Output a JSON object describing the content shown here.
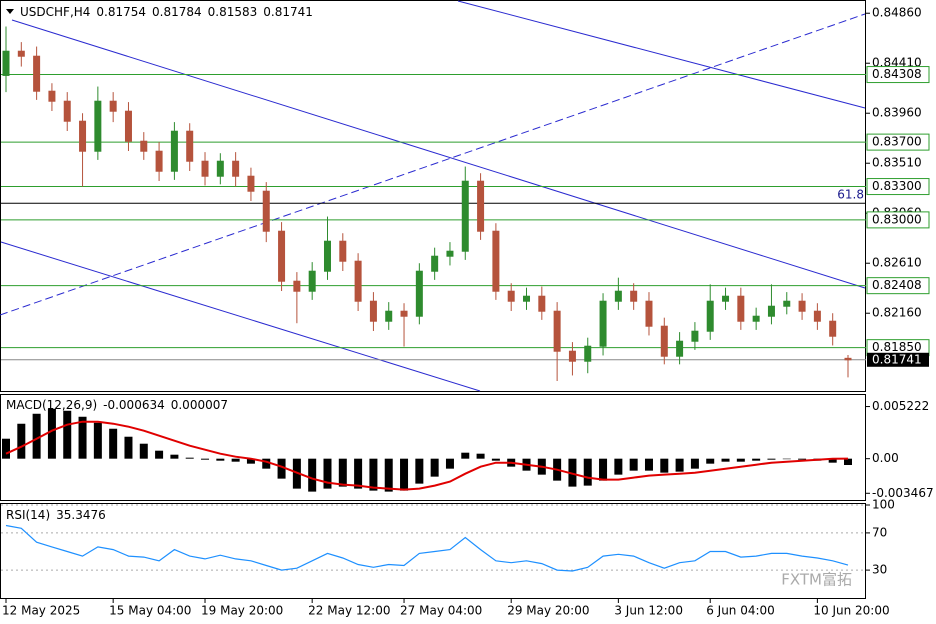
{
  "chart_data": [
    {
      "type": "candlestick",
      "title": "USDCHF,H4",
      "header_values": [
        0.81754,
        0.81784,
        0.81583,
        0.81741
      ],
      "categories": [
        "12 May 2025",
        null,
        null,
        null,
        null,
        null,
        null,
        "15 May 04:00",
        null,
        null,
        null,
        null,
        null,
        "19 May 20:00",
        null,
        null,
        null,
        null,
        null,
        null,
        "22 May 12:00",
        null,
        null,
        null,
        null,
        null,
        "27 May 04:00",
        null,
        null,
        null,
        null,
        null,
        null,
        "29 May 20:00",
        null,
        null,
        null,
        null,
        null,
        null,
        "3 Jun 12:00",
        null,
        null,
        null,
        null,
        null,
        "6 Jun 04:00",
        null,
        null,
        null,
        null,
        null,
        null,
        "10 Jun 20:00",
        null,
        null
      ],
      "open": [
        0.843,
        0.84518,
        0.84473,
        0.84158,
        0.84068,
        0.83888,
        0.83618,
        0.84068,
        0.83978,
        0.83708,
        0.83618,
        0.83438,
        0.83798,
        0.83528,
        0.83393,
        0.83528,
        0.83393,
        0.83258,
        0.82898,
        0.82448,
        0.82358,
        0.82538,
        0.82808,
        0.82628,
        0.82268,
        0.82088,
        0.82178,
        0.82133,
        0.82538,
        0.82673,
        0.82718,
        0.83348,
        0.82898,
        0.82358,
        0.82268,
        0.82313,
        0.82178,
        0.81818,
        0.81728,
        0.81863,
        0.82268,
        0.82358,
        0.82268,
        0.82043,
        0.81773,
        0.81908,
        0.81998,
        0.82268,
        0.82313,
        0.82088,
        0.82133,
        0.82223,
        0.82268,
        0.82178,
        0.82088,
        0.81754
      ],
      "high": [
        0.8474,
        0.846,
        0.8456,
        0.8423,
        0.8415,
        0.8396,
        0.842,
        0.8415,
        0.8406,
        0.8379,
        0.837,
        0.8388,
        0.8387,
        0.8361,
        0.836,
        0.8361,
        0.8347,
        0.8334,
        0.8298,
        0.8253,
        0.8262,
        0.8303,
        0.8288,
        0.827,
        0.8235,
        0.8226,
        0.8225,
        0.8261,
        0.8275,
        0.828,
        0.8348,
        0.8342,
        0.8297,
        0.8243,
        0.8239,
        0.824,
        0.8226,
        0.819,
        0.8194,
        0.8234,
        0.8248,
        0.8243,
        0.8235,
        0.8212,
        0.8199,
        0.8208,
        0.8242,
        0.8239,
        0.8239,
        0.8221,
        0.8242,
        0.8235,
        0.8234,
        0.8225,
        0.8216,
        0.81784
      ],
      "low": [
        0.8415,
        0.8438,
        0.8408,
        0.8398,
        0.838,
        0.833,
        0.8354,
        0.8388,
        0.8362,
        0.8354,
        0.8335,
        0.8336,
        0.8344,
        0.8331,
        0.8332,
        0.833,
        0.8317,
        0.828,
        0.8236,
        0.8207,
        0.8228,
        0.8246,
        0.8254,
        0.8218,
        0.82,
        0.8201,
        0.8186,
        0.8206,
        0.8246,
        0.8259,
        0.8264,
        0.8282,
        0.8228,
        0.8218,
        0.8219,
        0.821,
        0.8155,
        0.816,
        0.8162,
        0.8178,
        0.8219,
        0.8219,
        0.8196,
        0.817,
        0.817,
        0.8183,
        0.8192,
        0.8219,
        0.8201,
        0.8201,
        0.8206,
        0.8215,
        0.821,
        0.8201,
        0.8187,
        0.81583
      ],
      "close": [
        0.84518,
        0.84473,
        0.84158,
        0.84068,
        0.83888,
        0.83618,
        0.84068,
        0.83978,
        0.83708,
        0.83618,
        0.83438,
        0.83798,
        0.83528,
        0.83393,
        0.83528,
        0.83393,
        0.83258,
        0.82898,
        0.82448,
        0.82358,
        0.82538,
        0.82808,
        0.82628,
        0.82268,
        0.82088,
        0.82178,
        0.82133,
        0.82538,
        0.82673,
        0.82718,
        0.83348,
        0.82898,
        0.82358,
        0.82268,
        0.82313,
        0.82178,
        0.81818,
        0.81728,
        0.81863,
        0.82268,
        0.82358,
        0.82268,
        0.82043,
        0.81773,
        0.81908,
        0.81998,
        0.82268,
        0.82313,
        0.82088,
        0.82133,
        0.82223,
        0.82268,
        0.82178,
        0.82088,
        0.81953,
        0.81741
      ],
      "up_color": "#2e8b2e",
      "down_color": "#b5533c",
      "ylim": [
        0.8146,
        0.8497
      ],
      "yticks": [
        {
          "value": 0.8486,
          "label": "0.84860"
        },
        {
          "value": 0.8441,
          "label": "0.84410"
        },
        {
          "value": 0.8396,
          "label": "0.83960"
        },
        {
          "value": 0.8351,
          "label": "0.83510"
        },
        {
          "value": 0.8306,
          "label": "0.83060"
        },
        {
          "value": 0.8261,
          "label": "0.82610"
        },
        {
          "value": 0.8216,
          "label": "0.82160"
        }
      ],
      "levels": [
        {
          "value": 0.84308,
          "label": "0.84308"
        },
        {
          "value": 0.837,
          "label": "0.83700"
        },
        {
          "value": 0.833,
          "label": "0.83300"
        },
        {
          "value": 0.83,
          "label": "0.83000"
        },
        {
          "value": 0.82408,
          "label": "0.82408"
        },
        {
          "value": 0.8185,
          "label": "0.81850"
        }
      ],
      "level_color": "#2e9e2e",
      "fib": {
        "value": 0.8315,
        "label": "61.8"
      },
      "current": 0.81741
    },
    {
      "type": "bar",
      "title": "MACD(12,26,9)",
      "header_values": [
        -0.000634,
        7e-06
      ],
      "values": [
        0.002,
        0.0035,
        0.0045,
        0.005,
        0.0048,
        0.0042,
        0.0036,
        0.003,
        0.0022,
        0.0015,
        0.0008,
        0.0004,
        0.0001,
        -0.0001,
        -0.0002,
        -0.0003,
        -0.0005,
        -0.001,
        -0.002,
        -0.003,
        -0.0033,
        -0.003,
        -0.0028,
        -0.003,
        -0.0032,
        -0.0033,
        -0.0032,
        -0.0025,
        -0.0018,
        -0.001,
        0.0006,
        0.0005,
        -0.0002,
        -0.0008,
        -0.0012,
        -0.0016,
        -0.0022,
        -0.0028,
        -0.0027,
        -0.0022,
        -0.0016,
        -0.0012,
        -0.0012,
        -0.0014,
        -0.0013,
        -0.001,
        -0.0005,
        -0.0003,
        -0.0003,
        -0.0002,
        -0.0001,
        0,
        -0.0001,
        -0.0002,
        -0.0004,
        -0.000634
      ],
      "color": "#000000",
      "signal_values": [
        0.0005,
        0.0012,
        0.002,
        0.0028,
        0.0034,
        0.0037,
        0.0037,
        0.0035,
        0.0032,
        0.0028,
        0.0023,
        0.0018,
        0.0013,
        0.0009,
        0.0005,
        0.0002,
        0,
        -0.0003,
        -0.0008,
        -0.0014,
        -0.002,
        -0.0024,
        -0.0026,
        -0.0027,
        -0.0029,
        -0.003,
        -0.0031,
        -0.003,
        -0.0027,
        -0.0023,
        -0.0015,
        -0.0008,
        -0.0004,
        -0.0004,
        -0.0006,
        -0.0008,
        -0.0011,
        -0.0015,
        -0.0019,
        -0.0021,
        -0.0021,
        -0.0019,
        -0.0017,
        -0.0016,
        -0.0015,
        -0.0014,
        -0.0012,
        -0.001,
        -0.0008,
        -0.0006,
        -0.0004,
        -0.0003,
        -0.0002,
        -0.0001,
        0,
        7e-06
      ],
      "signal_color": "#e00000",
      "ylim": [
        -0.00414,
        0.00638
      ],
      "yticks": [
        0.005222,
        {
          "value": 0,
          "label": "0.00"
        },
        -0.003467
      ]
    },
    {
      "type": "line",
      "title": "RSI(14)",
      "header_values": [
        35.3476
      ],
      "values": [
        78,
        75,
        60,
        55,
        50,
        45,
        55,
        52,
        45,
        44,
        40,
        52,
        45,
        42,
        46,
        42,
        40,
        35,
        30,
        32,
        40,
        48,
        43,
        36,
        33,
        36,
        35,
        48,
        50,
        52,
        65,
        52,
        40,
        38,
        40,
        37,
        30,
        29,
        33,
        45,
        47,
        45,
        38,
        32,
        38,
        40,
        50,
        50,
        44,
        45,
        48,
        48,
        45,
        43,
        40,
        35.3476
      ],
      "color": "#1e90ff",
      "ylim": [
        0,
        100
      ],
      "yticks": [
        100,
        70,
        30
      ],
      "grid": true
    }
  ],
  "watermark": "FXTM富拓"
}
